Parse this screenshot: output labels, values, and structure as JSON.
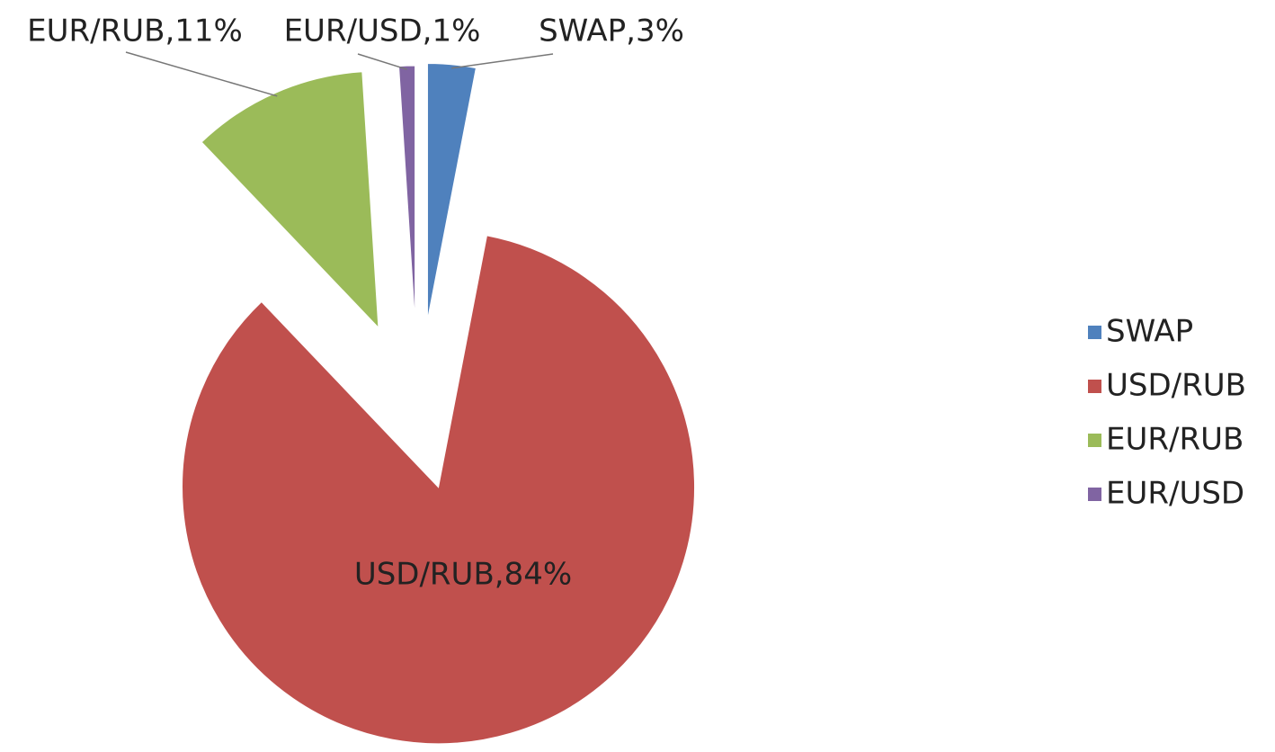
{
  "chart_data": {
    "type": "pie",
    "categories": [
      "SWAP",
      "USD/RUB",
      "EUR/RUB",
      "EUR/USD"
    ],
    "values": [
      3,
      84,
      11,
      1
    ],
    "value_labels": [
      "SWAP,3%",
      "USD/RUB,84%",
      "EUR/RUB,11%",
      "EUR/USD,1%"
    ],
    "colors": [
      "#4f81bd",
      "#c0504d",
      "#9bbb59",
      "#8064a2"
    ],
    "legend": "right"
  }
}
